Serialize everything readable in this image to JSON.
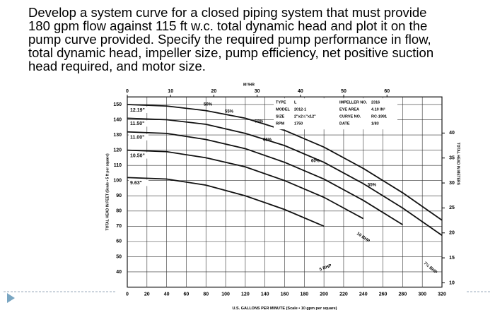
{
  "question": {
    "lines": [
      "Develop a system curve for a closed piping system that must provide",
      "180 gpm flow against 115 ft w.c. total dynamic head and plot it on the",
      "pump curve provided. Specify the required pump performance in flow,",
      "total dynamic head,  impeller size, pump efficiency,  net positive suction",
      "head required, and motor size."
    ]
  },
  "chart_data": {
    "type": "line",
    "x_label": "U.S. GALLONS PER MINUTE (Scale • 10 gpm per square)",
    "y_label": "TOTAL HEAD IN FEET (Scale • 5 ft per square)",
    "y2_label": "TOTAL HEAD IN METERS",
    "x2_label": "M³/HR",
    "x": [
      0,
      40,
      80,
      120,
      160,
      200,
      240,
      280,
      320
    ],
    "series": [
      {
        "name": "12.19\"",
        "color": "#111111",
        "values": [
          150,
          149,
          146,
          141,
          133,
          122,
          108,
          92,
          74
        ]
      },
      {
        "name": "11.50\"",
        "color": "#111111",
        "values": [
          141,
          140,
          137,
          131,
          123,
          112,
          98,
          82,
          64
        ]
      },
      {
        "name": "11.00\"",
        "color": "#111111",
        "values": [
          132,
          131,
          127,
          121,
          112,
          101,
          87,
          71,
          null
        ]
      },
      {
        "name": "10.50\"",
        "color": "#111111",
        "values": [
          120,
          119,
          115,
          109,
          100,
          89,
          75,
          null,
          null
        ]
      },
      {
        "name": "9.63\"",
        "color": "#111111",
        "values": [
          102,
          101,
          97,
          90,
          81,
          70,
          null,
          null,
          null
        ]
      }
    ],
    "xlim": [
      0,
      320
    ],
    "xticks": [
      0,
      20,
      40,
      60,
      80,
      100,
      120,
      140,
      160,
      180,
      200,
      220,
      240,
      260,
      280,
      300,
      320
    ],
    "ylim": [
      30,
      155
    ],
    "yticks": [
      40,
      50,
      60,
      70,
      80,
      90,
      100,
      110,
      120,
      130,
      140,
      150
    ],
    "x2lim": [
      0,
      72.7
    ],
    "x2ticks": [
      0,
      10,
      20,
      30,
      40,
      50,
      60
    ],
    "y2lim": [
      9.14,
      47.24
    ],
    "y2ticks": [
      10,
      15,
      20,
      25,
      30,
      35,
      40
    ],
    "grid": true,
    "info": [
      {
        "label": "TYPE",
        "value": "L"
      },
      {
        "label": "MODEL",
        "value": "2012-1"
      },
      {
        "label": "SIZE",
        "value": "2\"x2½\"x12\""
      },
      {
        "label": "RPM",
        "value": "1750"
      },
      {
        "label": "IMPELLER NO.",
        "value": "2316"
      },
      {
        "label": "EYE AREA",
        "value": "4.10 IN²"
      },
      {
        "label": "CURVE NO.",
        "value": "RC-1991"
      },
      {
        "label": "DATE",
        "value": "1/83"
      }
    ],
    "annotations": [
      "50%",
      "55%",
      "60%",
      "65%",
      "60%",
      "55%",
      "10 BHP",
      "7½ BHP",
      "5 BHP"
    ]
  }
}
